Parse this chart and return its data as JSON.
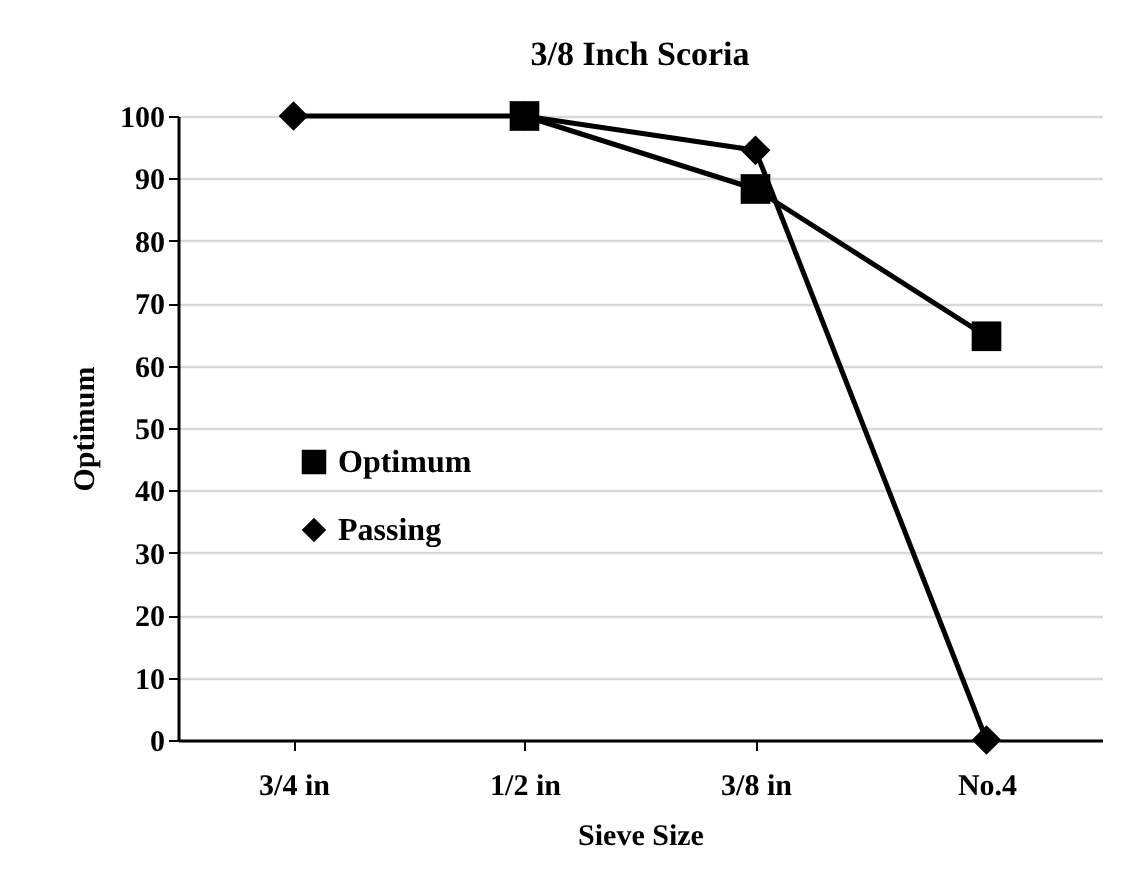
{
  "chart_data": {
    "type": "line",
    "title": "3/8 Inch Scoria",
    "xlabel": "Sieve Size",
    "ylabel": "Optimum",
    "categories": [
      "3/4 in",
      "1/2 in",
      "3/8 in",
      "No.4"
    ],
    "series": [
      {
        "name": "Optimum",
        "color": "#000000",
        "marker": "square",
        "values": [
          null,
          100,
          88.3,
          64.7
        ]
      },
      {
        "name": "Passing",
        "color": "#000000",
        "marker": "diamond",
        "values": [
          100,
          100,
          94.5,
          0
        ]
      }
    ],
    "ylim": [
      0,
      100
    ],
    "yticks": [
      0,
      10,
      20,
      30,
      40,
      50,
      60,
      70,
      80,
      90,
      100
    ],
    "grid": "y",
    "legend": "left",
    "line_style": "solid"
  }
}
